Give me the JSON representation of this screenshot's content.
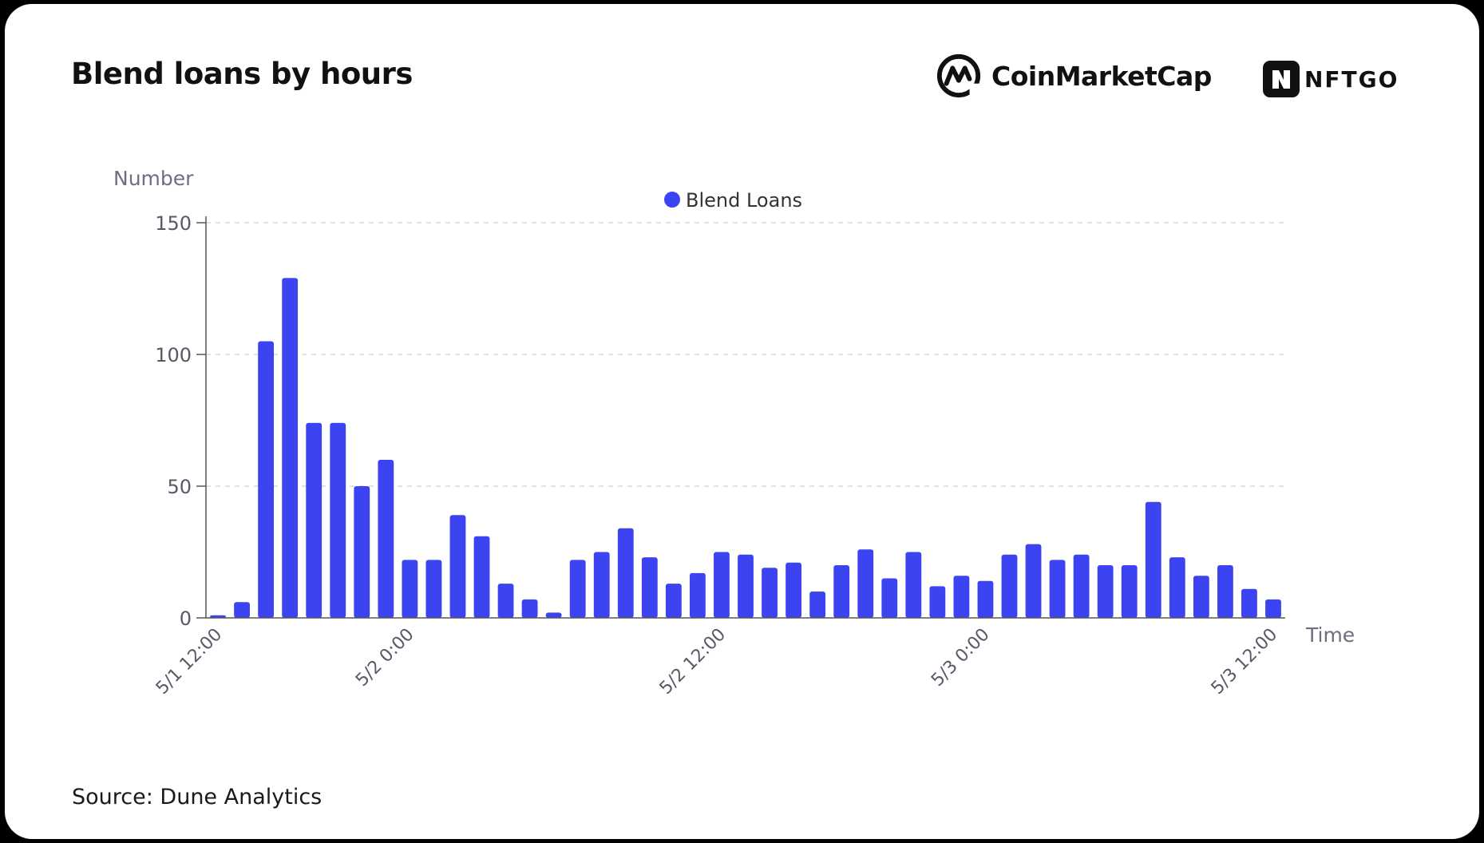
{
  "header": {
    "title": "Blend loans by hours",
    "brand_cmc": "CoinMarketCap",
    "brand_nftgo": "NFTGO"
  },
  "footer": {
    "source": "Source: Dune Analytics"
  },
  "colors": {
    "bar": "#3b44f0",
    "axis_text": "#555a66",
    "axis_title": "#6b7080",
    "grid": "#d8d8d8",
    "title": "#111111"
  },
  "chart_data": {
    "type": "bar",
    "ylabel": "Number",
    "xlabel": "Time",
    "ylim": [
      0,
      150
    ],
    "yticks": [
      0,
      50,
      100,
      150
    ],
    "grid": true,
    "legend_position": "top-center",
    "xtick_labels": [
      {
        "index": 0,
        "label": "5/1 12:00"
      },
      {
        "index": 8,
        "label": "5/2 0:00"
      },
      {
        "index": 21,
        "label": "5/2 12:00"
      },
      {
        "index": 32,
        "label": "5/3 0:00"
      },
      {
        "index": 44,
        "label": "5/3 12:00"
      }
    ],
    "series": [
      {
        "name": "Blend Loans",
        "values": [
          1,
          6,
          105,
          129,
          74,
          74,
          50,
          60,
          22,
          22,
          39,
          31,
          13,
          7,
          2,
          22,
          25,
          34,
          23,
          13,
          17,
          25,
          24,
          19,
          21,
          10,
          20,
          26,
          15,
          25,
          12,
          16,
          14,
          24,
          28,
          22,
          24,
          20,
          20,
          44,
          23,
          16,
          20,
          11,
          7
        ]
      }
    ]
  }
}
